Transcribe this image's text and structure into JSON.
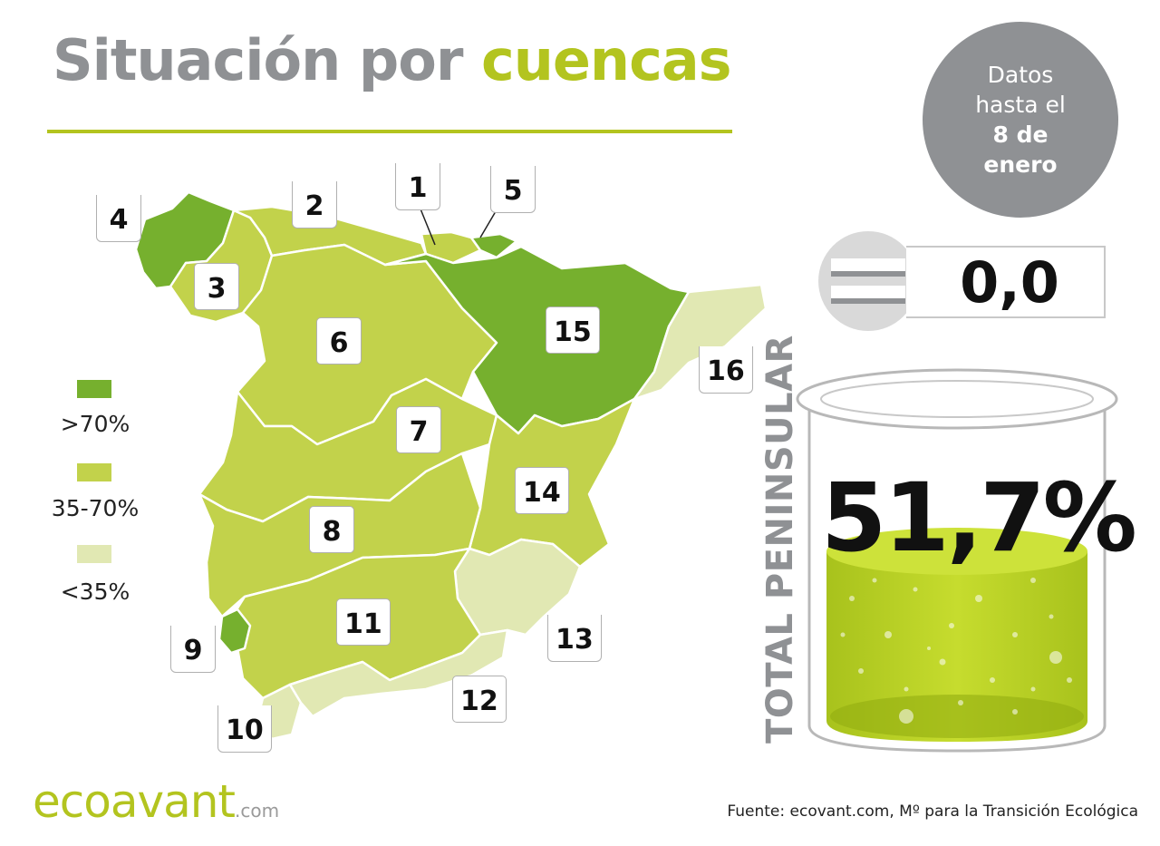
{
  "title": {
    "part1": "Situación por ",
    "part2": "cuencas"
  },
  "date_badge": {
    "line1": "Datos",
    "line2": "hasta el",
    "line3": "8 de",
    "line4": "enero"
  },
  "weekly_change": "0,0",
  "total": {
    "label": "TOTAL PENINSULAR",
    "value": "51,7%"
  },
  "legend": [
    {
      "label": ">70%",
      "color": "#76b02e"
    },
    {
      "label": "35-70%",
      "color": "#c2d24b"
    },
    {
      "label": "<35%",
      "color": "#e1e8b3"
    }
  ],
  "basins": [
    "1",
    "2",
    "3",
    "4",
    "5",
    "6",
    "7",
    "8",
    "9",
    "10",
    "11",
    "12",
    "13",
    "14",
    "15",
    "16"
  ],
  "brand": {
    "name": "ecoavant",
    "suffix": ".com"
  },
  "source": "Fuente: ecovant.com, Mº para la Transición Ecológica",
  "colors": {
    "accent": "#b3c41f",
    "grey": "#8f9194",
    "high": "#76b02e",
    "mid": "#c2d24b",
    "low": "#e1e8b3"
  }
}
